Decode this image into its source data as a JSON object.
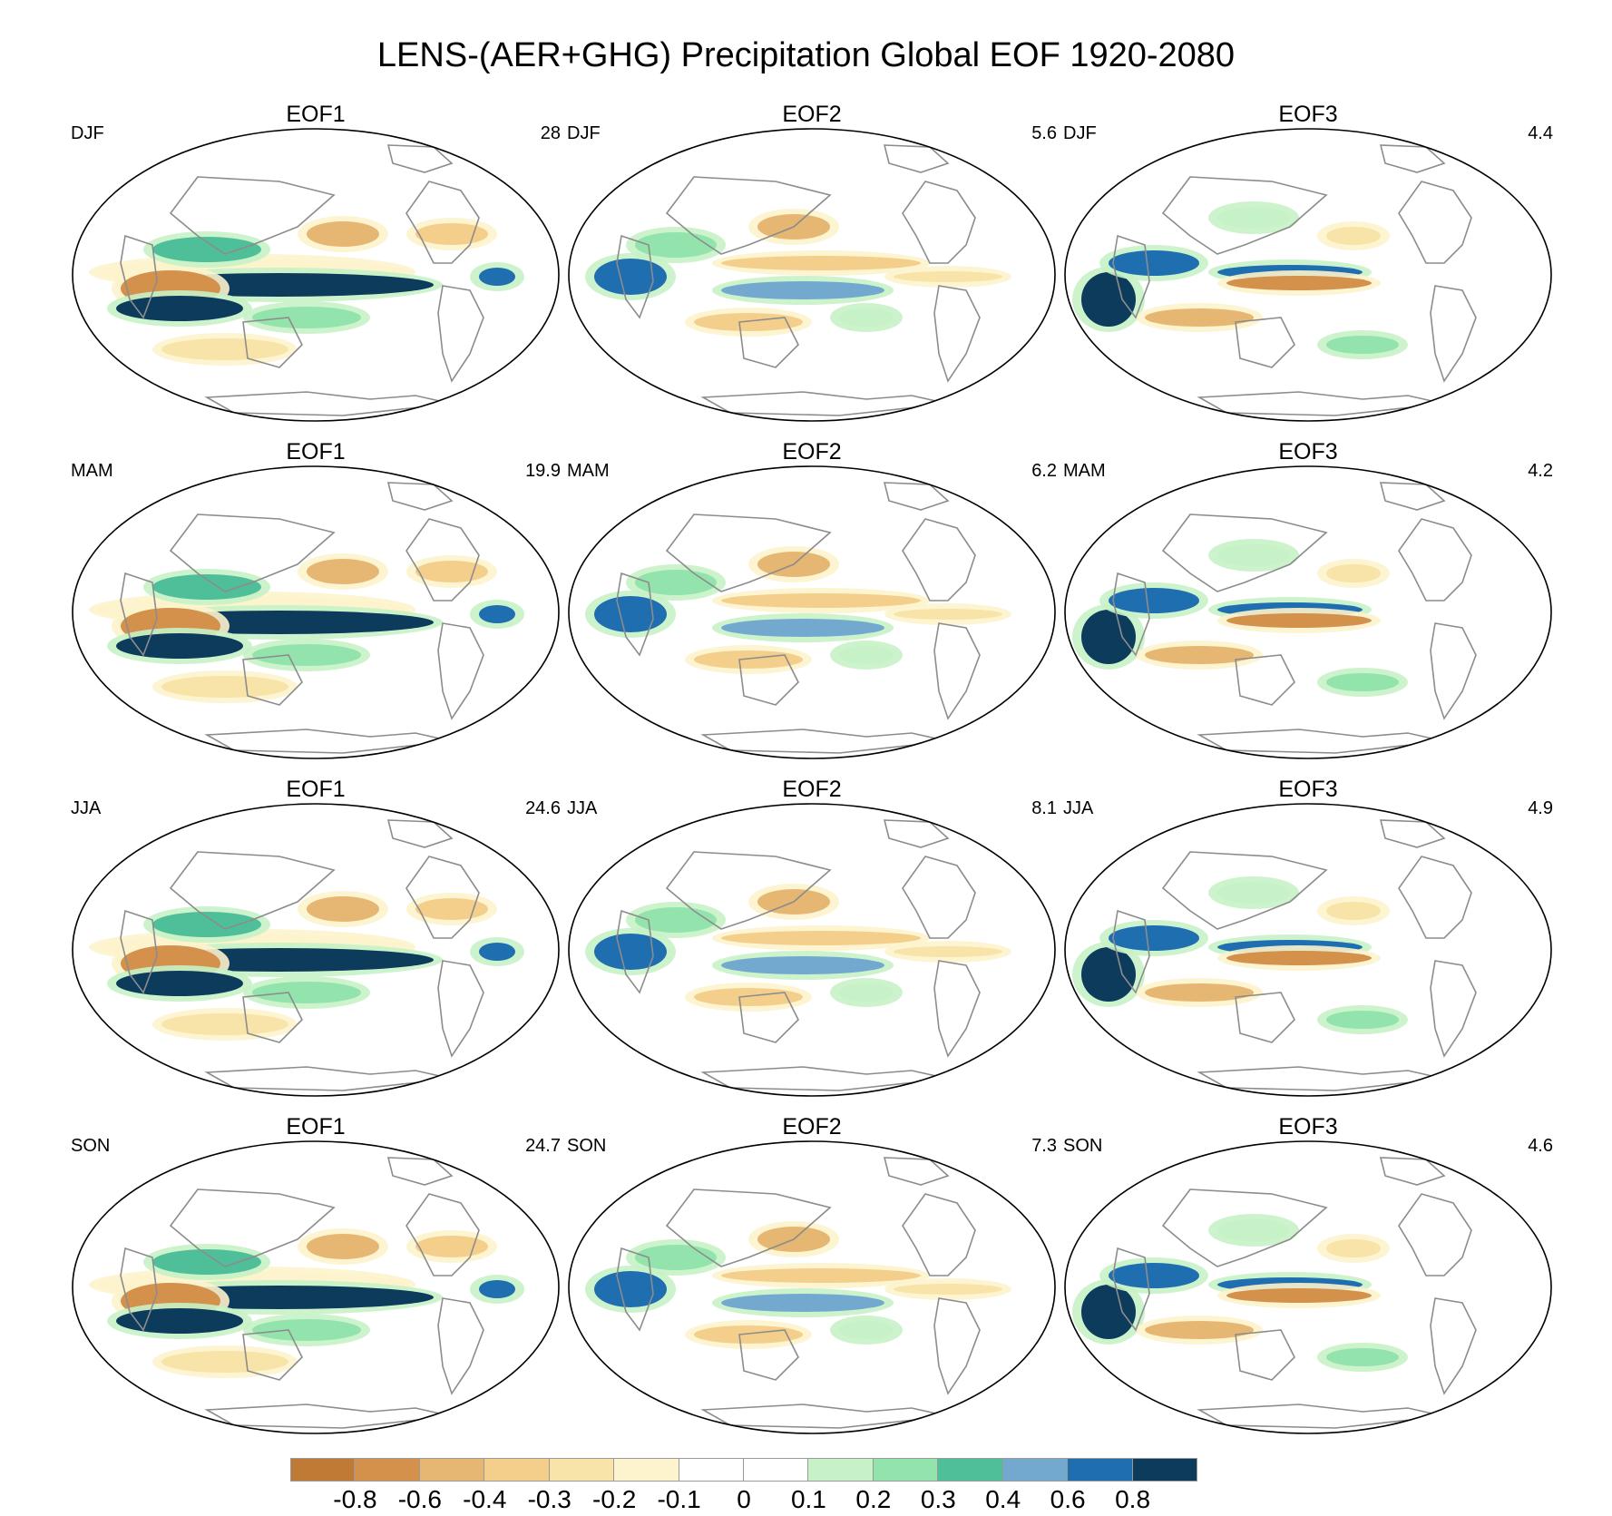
{
  "title": "LENS-(AER+GHG) Precipitation Global EOF 1920-2080",
  "panels": [
    {
      "season": "DJF",
      "eof": "EOF1",
      "variance": "28"
    },
    {
      "season": "DJF",
      "eof": "EOF2",
      "variance": "5.6"
    },
    {
      "season": "DJF",
      "eof": "EOF3",
      "variance": "4.4"
    },
    {
      "season": "MAM",
      "eof": "EOF1",
      "variance": "19.9"
    },
    {
      "season": "MAM",
      "eof": "EOF2",
      "variance": "6.2"
    },
    {
      "season": "MAM",
      "eof": "EOF3",
      "variance": "4.2"
    },
    {
      "season": "JJA",
      "eof": "EOF1",
      "variance": "24.6"
    },
    {
      "season": "JJA",
      "eof": "EOF2",
      "variance": "8.1"
    },
    {
      "season": "JJA",
      "eof": "EOF3",
      "variance": "4.9"
    },
    {
      "season": "SON",
      "eof": "EOF1",
      "variance": "24.7"
    },
    {
      "season": "SON",
      "eof": "EOF2",
      "variance": "7.3"
    },
    {
      "season": "SON",
      "eof": "EOF3",
      "variance": "4.6"
    }
  ],
  "colorbar": {
    "colors": [
      "#bf7a35",
      "#d3914b",
      "#e6b673",
      "#f4cf8c",
      "#f8e3a9",
      "#fdf3cc",
      "#ffffff",
      "#ffffff",
      "#c7f2c7",
      "#93e3ad",
      "#4fbf9a",
      "#74a9cf",
      "#1f6eb0",
      "#0d3b5c"
    ],
    "tick_labels": [
      "-0.8",
      "-0.6",
      "-0.4",
      "-0.3",
      "-0.2",
      "-0.1",
      "0",
      "0.1",
      "0.2",
      "0.3",
      "0.4",
      "0.6",
      "0.8"
    ]
  }
}
